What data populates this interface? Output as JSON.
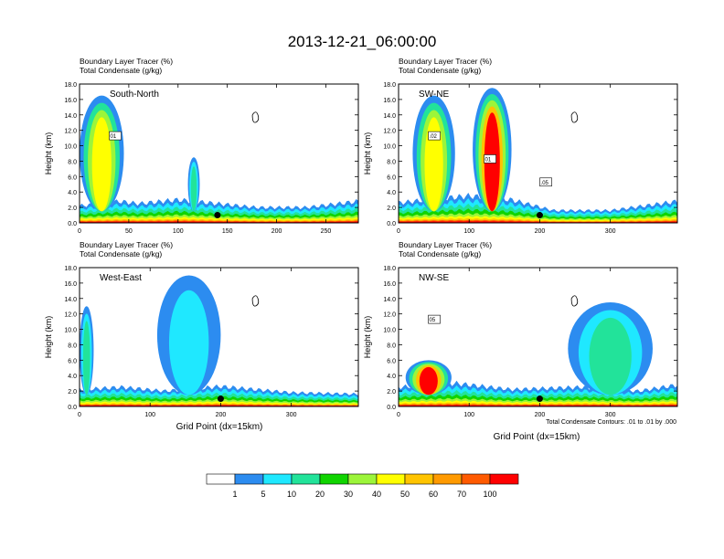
{
  "title": "2013-12-21_06:00:00",
  "colors": {
    "levels": [
      "#ffffff",
      "#2c8cf0",
      "#1fe8ff",
      "#22e39a",
      "#10d400",
      "#9cf53a",
      "#ffff00",
      "#ffc400",
      "#ff9a00",
      "#ff5a00",
      "#ff0000"
    ],
    "condensate_contour": "#000000",
    "marker": "#000000"
  },
  "colorbar": {
    "tick_labels": [
      "1",
      "5",
      "10",
      "20",
      "30",
      "40",
      "50",
      "60",
      "70",
      "100"
    ]
  },
  "xlabel": "Grid Point (dx=15km)",
  "ylabel": "Height (km)",
  "contour_note": "Total Condensate Contours: .01 to .01 by .000",
  "chart_data": [
    {
      "type": "heatmap",
      "panel_label": "South-North",
      "subtitle_line1": "Boundary Layer Tracer    (%)",
      "subtitle_line2": "Total Condensate    (g/kg)",
      "ylabel": "Height (km)",
      "xlim": [
        0,
        283
      ],
      "ylim": [
        0,
        18
      ],
      "xticks": [
        0,
        50,
        100,
        150,
        200,
        250
      ],
      "xtick_labels": [
        "0",
        "50",
        "100",
        "150",
        "200",
        "250"
      ],
      "yticks": [
        0,
        2,
        4,
        6,
        8,
        10,
        12,
        14,
        16,
        18
      ],
      "ytick_labels": [
        "0.0",
        "2.0",
        "4.0",
        "6.0",
        "8.0",
        "10.0",
        "12.0",
        "14.0",
        "16.0",
        "18.0"
      ],
      "marker_x": 140,
      "contour_labels": [
        "01"
      ],
      "boundary_layer": [
        [
          0,
          2.2
        ],
        [
          40,
          2.8
        ],
        [
          60,
          2.5
        ],
        [
          100,
          3.0
        ],
        [
          140,
          2.5
        ],
        [
          180,
          2.0
        ],
        [
          230,
          2.0
        ],
        [
          283,
          2.8
        ]
      ],
      "plumes": [
        {
          "x": [
            0,
            45
          ],
          "top": 16.5,
          "peak": 45
        },
        {
          "x": [
            110,
            122
          ],
          "top": 8.5,
          "peak": 20
        }
      ]
    },
    {
      "type": "heatmap",
      "panel_label": "SW-NE",
      "subtitle_line1": "Boundary Layer Tracer    (%)",
      "subtitle_line2": "Total Condensate    (g/kg)",
      "ylabel": "Height (km)",
      "xlim": [
        0,
        395
      ],
      "ylim": [
        0,
        18
      ],
      "xticks": [
        0,
        100,
        200,
        300
      ],
      "xtick_labels": [
        "0",
        "100",
        "200",
        "300"
      ],
      "yticks": [
        0,
        2,
        4,
        6,
        8,
        10,
        12,
        14,
        16,
        18
      ],
      "ytick_labels": [
        "0.0",
        "2.0",
        "4.0",
        "6.0",
        "8.0",
        "10.0",
        "12.0",
        "14.0",
        "16.0",
        "18.0"
      ],
      "marker_x": 200,
      "contour_labels": [
        ".02",
        "01",
        ".05"
      ],
      "boundary_layer": [
        [
          0,
          2.6
        ],
        [
          40,
          3.0
        ],
        [
          100,
          3.5
        ],
        [
          160,
          3.0
        ],
        [
          220,
          1.6
        ],
        [
          300,
          1.6
        ],
        [
          395,
          2.8
        ]
      ],
      "plumes": [
        {
          "x": [
            20,
            80
          ],
          "top": 16.5,
          "peak": 45
        },
        {
          "x": [
            105,
            160
          ],
          "top": 17.5,
          "peak": 100
        }
      ]
    },
    {
      "type": "heatmap",
      "panel_label": "West-East",
      "subtitle_line1": "Boundary Layer Tracer    (%)",
      "subtitle_line2": "Total Condensate    (g/kg)",
      "ylabel": "Height (km)",
      "xlim": [
        0,
        395
      ],
      "ylim": [
        0,
        18
      ],
      "xticks": [
        0,
        100,
        200,
        300
      ],
      "xtick_labels": [
        "0",
        "100",
        "200",
        "300"
      ],
      "yticks": [
        0,
        2,
        4,
        6,
        8,
        10,
        12,
        14,
        16,
        18
      ],
      "ytick_labels": [
        "0.0",
        "2.0",
        "4.0",
        "6.0",
        "8.0",
        "10.0",
        "12.0",
        "14.0",
        "16.0",
        "18.0"
      ],
      "marker_x": 200,
      "contour_labels": [],
      "boundary_layer": [
        [
          0,
          2.2
        ],
        [
          60,
          2.5
        ],
        [
          120,
          2.0
        ],
        [
          200,
          2.6
        ],
        [
          300,
          1.8
        ],
        [
          395,
          1.6
        ]
      ],
      "plumes": [
        {
          "x": [
            0,
            20
          ],
          "top": 13.0,
          "peak": 20
        },
        {
          "x": [
            110,
            200
          ],
          "top": 17.0,
          "peak": 10
        }
      ]
    },
    {
      "type": "heatmap",
      "panel_label": "NW-SE",
      "subtitle_line1": "Boundary Layer Tracer    (%)",
      "subtitle_line2": "Total Condensate    (g/kg)",
      "ylabel": "Height (km)",
      "xlim": [
        0,
        395
      ],
      "ylim": [
        0,
        18
      ],
      "xticks": [
        0,
        100,
        200,
        300
      ],
      "xtick_labels": [
        "0",
        "100",
        "200",
        "300"
      ],
      "yticks": [
        0,
        2,
        4,
        6,
        8,
        10,
        12,
        14,
        16,
        18
      ],
      "ytick_labels": [
        "0.0",
        "2.0",
        "4.0",
        "6.0",
        "8.0",
        "10.0",
        "12.0",
        "14.0",
        "16.0",
        "18.0"
      ],
      "marker_x": 200,
      "contour_labels": [
        "05"
      ],
      "boundary_layer": [
        [
          0,
          2.5
        ],
        [
          80,
          3.0
        ],
        [
          160,
          2.2
        ],
        [
          260,
          2.5
        ],
        [
          340,
          2.0
        ],
        [
          395,
          2.8
        ]
      ],
      "plumes": [
        {
          "x": [
            10,
            75
          ],
          "top": 6.0,
          "peak": 60
        },
        {
          "x": [
            240,
            360
          ],
          "top": 13.5,
          "peak": 20
        }
      ]
    }
  ]
}
